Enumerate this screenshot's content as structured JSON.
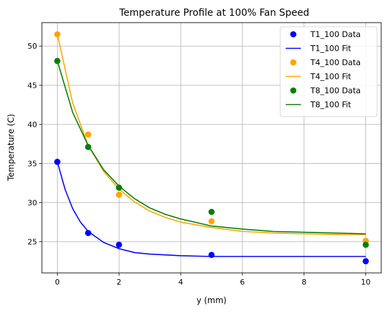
{
  "chart_data": {
    "type": "scatter",
    "title": "Temperature Profile at 100% Fan Speed",
    "xlabel": "y (mm)",
    "ylabel": "Temperature (C)",
    "xlim": [
      -0.5,
      10.5
    ],
    "ylim": [
      21,
      53
    ],
    "xticks": [
      0,
      2,
      4,
      6,
      8,
      10
    ],
    "yticks": [
      25,
      30,
      35,
      40,
      45,
      50
    ],
    "grid": true,
    "legend_position": "top-right",
    "series": [
      {
        "name": "T1_100 Data",
        "kind": "points",
        "color": "#0000ff",
        "x": [
          0,
          1,
          2,
          5,
          10
        ],
        "y": [
          35.2,
          26.1,
          24.6,
          23.3,
          22.5
        ]
      },
      {
        "name": "T1_100 Fit",
        "kind": "line",
        "color": "#0000ff",
        "x": [
          0,
          0.25,
          0.5,
          0.75,
          1,
          1.5,
          2,
          2.5,
          3,
          4,
          5,
          6,
          8,
          10
        ],
        "y": [
          35.2,
          31.7,
          29.2,
          27.5,
          26.3,
          24.9,
          24.1,
          23.6,
          23.4,
          23.2,
          23.1,
          23.1,
          23.1,
          23.1
        ]
      },
      {
        "name": "T4_100 Data",
        "kind": "points",
        "color": "#ffa500",
        "x": [
          0,
          1,
          2,
          5,
          10
        ],
        "y": [
          51.5,
          38.7,
          31.0,
          27.6,
          25.1
        ]
      },
      {
        "name": "T4_100 Fit",
        "kind": "line",
        "color": "#ffa500",
        "x": [
          0,
          0.5,
          1,
          1.5,
          2,
          2.5,
          3,
          3.5,
          4,
          5,
          6,
          7,
          8,
          9,
          10
        ],
        "y": [
          51.5,
          42.7,
          37.3,
          34.0,
          31.7,
          30.1,
          28.9,
          28.1,
          27.5,
          26.8,
          26.3,
          26.1,
          26.0,
          25.9,
          25.9
        ]
      },
      {
        "name": "T8_100 Data",
        "kind": "points",
        "color": "#008000",
        "x": [
          0,
          1,
          2,
          5,
          10
        ],
        "y": [
          48.1,
          37.1,
          31.9,
          28.8,
          24.6
        ]
      },
      {
        "name": "T8_100 Fit",
        "kind": "line",
        "color": "#008000",
        "x": [
          0,
          0.5,
          1,
          1.5,
          2,
          2.5,
          3,
          3.5,
          4,
          5,
          6,
          7,
          8,
          9,
          10
        ],
        "y": [
          48.1,
          41.5,
          37.3,
          34.2,
          32.1,
          30.5,
          29.3,
          28.5,
          27.9,
          27.0,
          26.6,
          26.3,
          26.2,
          26.1,
          26.0
        ]
      }
    ]
  }
}
